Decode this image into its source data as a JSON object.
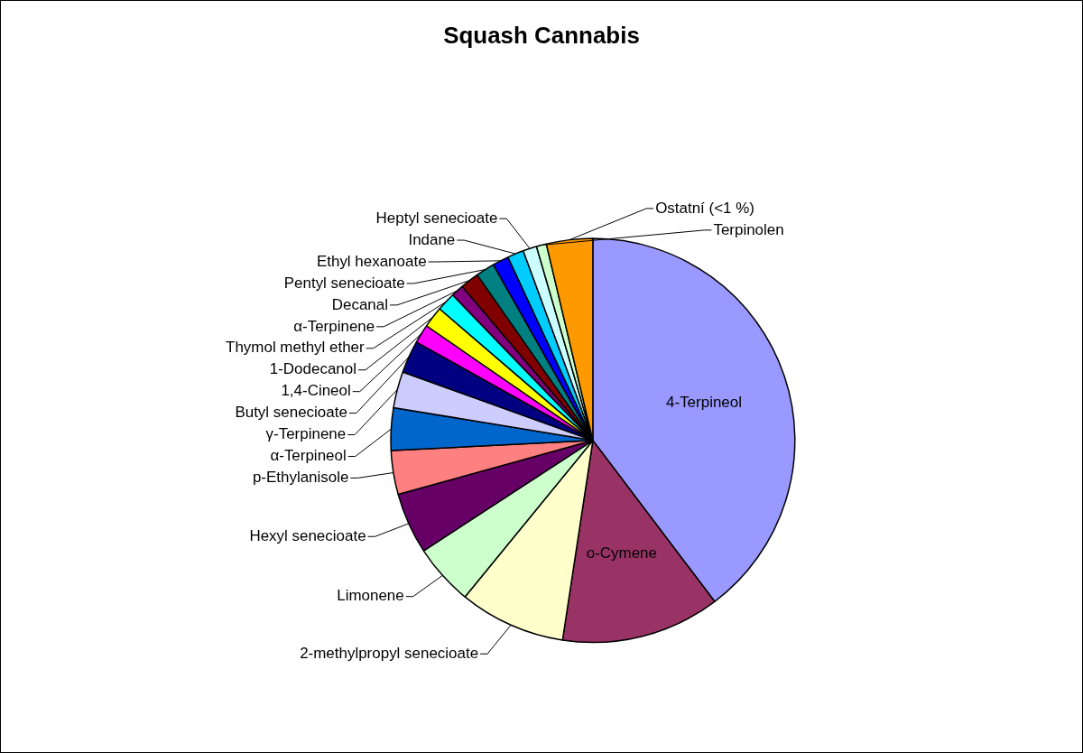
{
  "chart_data": {
    "type": "pie",
    "title": "Squash Cannabis",
    "categories": [
      "4-Terpineol",
      "o-Cymene",
      "2-methylpropyl senecioate",
      "Limonene",
      "Hexyl senecioate",
      "p-Ethylanisole",
      "α-Terpineol",
      "γ-Terpinene",
      "Butyl senecioate",
      "1,4-Cineol",
      "1-Dodecanol",
      "Thymol methyl ether",
      "α-Terpinene",
      "Decanal",
      "Pentyl senecioate",
      "Ethyl hexanoate",
      "Indane",
      "Heptyl senecioate",
      "Terpinolen",
      "Ostatní (<1 %)"
    ],
    "values": [
      39.7,
      12.7,
      8.5,
      4.9,
      4.9,
      3.5,
      3.4,
      2.9,
      2.6,
      1.5,
      1.7,
      1.5,
      1.0,
      1.5,
      1.5,
      1.3,
      1.3,
      1.1,
      0.8,
      3.7
    ],
    "colors": [
      "#9999ff",
      "#993366",
      "#ffffcc",
      "#ccffcc",
      "#660066",
      "#ff8080",
      "#0066cc",
      "#ccccff",
      "#000080",
      "#ff00ff",
      "#ffff00",
      "#00ffff",
      "#800080",
      "#800000",
      "#008080",
      "#0000ff",
      "#00ccff",
      "#ccffff",
      "#ccffcc",
      "#ff9900"
    ]
  }
}
